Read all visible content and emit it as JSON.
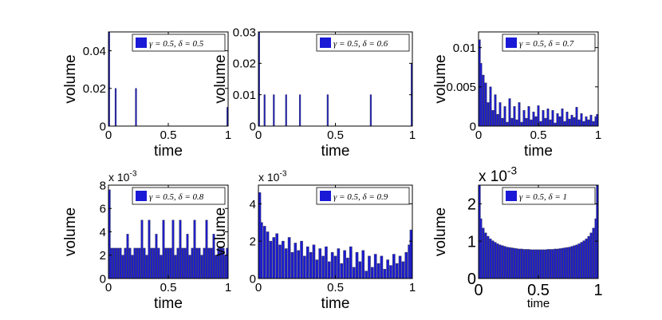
{
  "chart_data": [
    {
      "type": "bar",
      "xlabel": "time",
      "ylabel": "volume",
      "xlim": [
        0,
        1
      ],
      "ylim": [
        0,
        0.05
      ],
      "xticks": [
        "0",
        "0.5",
        "1"
      ],
      "yticks": [
        "0",
        "0.02",
        "0.04"
      ],
      "ytick_values": [
        0,
        0.02,
        0.04
      ],
      "exponent_label": "",
      "legend": "γ = 0.5,  δ = 0.5",
      "x": [
        0,
        0.06,
        0.23,
        1.0
      ],
      "values": [
        0.05,
        0.02,
        0.02,
        0.01
      ]
    },
    {
      "type": "bar",
      "xlabel": "time",
      "ylabel": "volume",
      "xlim": [
        0,
        1
      ],
      "ylim": [
        0,
        0.03
      ],
      "xticks": [
        "0",
        "0.5",
        "1"
      ],
      "yticks": [
        "0",
        "0.01",
        "0.02",
        "0.03"
      ],
      "ytick_values": [
        0,
        0.01,
        0.02,
        0.03
      ],
      "exponent_label": "",
      "legend": "γ = 0.5,  δ = 0.6",
      "x": [
        0,
        0.04,
        0.1,
        0.18,
        0.27,
        0.45,
        0.73,
        1.0
      ],
      "values": [
        0.03,
        0.01,
        0.01,
        0.01,
        0.01,
        0.01,
        0.01,
        0.02
      ]
    },
    {
      "type": "bar",
      "xlabel": "time",
      "ylabel": "volume",
      "xlim": [
        0,
        1
      ],
      "ylim": [
        0,
        0.012
      ],
      "xticks": [
        "0",
        "0.5",
        "1"
      ],
      "yticks": [
        "0",
        "0.005",
        "0.01"
      ],
      "ytick_values": [
        0,
        0.005,
        0.01
      ],
      "exponent_label": "",
      "legend": "γ = 0.5,  δ = 0.7",
      "x": [
        0,
        0.02,
        0.04,
        0.06,
        0.08,
        0.1,
        0.12,
        0.14,
        0.16,
        0.18,
        0.2,
        0.22,
        0.24,
        0.26,
        0.28,
        0.3,
        0.32,
        0.34,
        0.36,
        0.38,
        0.4,
        0.42,
        0.44,
        0.46,
        0.48,
        0.5,
        0.52,
        0.54,
        0.56,
        0.58,
        0.6,
        0.62,
        0.64,
        0.66,
        0.68,
        0.7,
        0.72,
        0.74,
        0.76,
        0.78,
        0.8,
        0.82,
        0.84,
        0.86,
        0.88,
        0.9,
        0.92,
        0.94,
        0.96,
        0.98,
        1.0
      ],
      "values": [
        0.011,
        0.008,
        0.0065,
        0.0055,
        0.003,
        0.005,
        0.002,
        0.004,
        0.0015,
        0.003,
        0.001,
        0.0025,
        0.0005,
        0.0035,
        0.001,
        0.0025,
        0.0008,
        0.003,
        0.0005,
        0.002,
        0.001,
        0.0025,
        0.0008,
        0.0018,
        0.0012,
        0.0026,
        0.0006,
        0.002,
        0.001,
        0.0022,
        0.0008,
        0.002,
        0.0004,
        0.0016,
        0.0012,
        0.0022,
        0.0006,
        0.0018,
        0.0009,
        0.0014,
        0.0011,
        0.0024,
        0.0008,
        0.0016,
        0.0006,
        0.0012,
        0.0008,
        0.0014,
        0.0006,
        0.0012,
        0.0015
      ]
    },
    {
      "type": "bar",
      "xlabel": "time",
      "ylabel": "volume",
      "xlim": [
        0,
        1
      ],
      "ylim": [
        0,
        0.008
      ],
      "xticks": [
        "0",
        "0.5",
        "1"
      ],
      "yticks": [
        "0",
        "2",
        "4",
        "6",
        "8"
      ],
      "ytick_values": [
        0,
        0.002,
        0.004,
        0.006,
        0.008
      ],
      "exponent_label": "x 10",
      "exponent_power": "-3",
      "legend": "γ = 0.5,  δ = 0.8",
      "x": [
        0,
        0.02,
        0.04,
        0.06,
        0.08,
        0.1,
        0.12,
        0.14,
        0.16,
        0.18,
        0.2,
        0.22,
        0.24,
        0.26,
        0.28,
        0.3,
        0.32,
        0.34,
        0.36,
        0.38,
        0.4,
        0.42,
        0.44,
        0.46,
        0.48,
        0.5,
        0.52,
        0.54,
        0.56,
        0.58,
        0.6,
        0.62,
        0.64,
        0.66,
        0.68,
        0.7,
        0.72,
        0.74,
        0.76,
        0.78,
        0.8,
        0.82,
        0.84,
        0.86,
        0.88,
        0.9,
        0.92,
        0.94,
        0.96,
        0.98,
        1.0
      ],
      "values": [
        0.0076,
        0.0026,
        0.0026,
        0.0026,
        0.0026,
        0.0026,
        0.002,
        0.0026,
        0.0038,
        0.0026,
        0.002,
        0.0026,
        0.0026,
        0.0026,
        0.005,
        0.0026,
        0.002,
        0.005,
        0.0026,
        0.0026,
        0.0038,
        0.0026,
        0.002,
        0.005,
        0.0026,
        0.0026,
        0.0026,
        0.005,
        0.002,
        0.0026,
        0.005,
        0.0026,
        0.0026,
        0.0038,
        0.002,
        0.0026,
        0.005,
        0.0026,
        0.0026,
        0.002,
        0.0026,
        0.005,
        0.0026,
        0.0026,
        0.0038,
        0.002,
        0.0026,
        0.0026,
        0.0026,
        0.002,
        0.0026
      ]
    },
    {
      "type": "bar",
      "xlabel": "time",
      "ylabel": "volume",
      "xlim": [
        0,
        1
      ],
      "ylim": [
        0,
        0.005
      ],
      "xticks": [
        "0",
        "0.5",
        "1"
      ],
      "yticks": [
        "0",
        "2",
        "4"
      ],
      "ytick_values": [
        0,
        0.002,
        0.004
      ],
      "exponent_label": "x 10",
      "exponent_power": "-3",
      "legend": "γ = 0.5,  δ = 0.9",
      "x": [
        0,
        0.02,
        0.04,
        0.06,
        0.08,
        0.1,
        0.12,
        0.14,
        0.16,
        0.18,
        0.2,
        0.22,
        0.24,
        0.26,
        0.28,
        0.3,
        0.32,
        0.34,
        0.36,
        0.38,
        0.4,
        0.42,
        0.44,
        0.46,
        0.48,
        0.5,
        0.52,
        0.54,
        0.56,
        0.58,
        0.6,
        0.62,
        0.64,
        0.66,
        0.68,
        0.7,
        0.72,
        0.74,
        0.76,
        0.78,
        0.8,
        0.82,
        0.84,
        0.86,
        0.88,
        0.9,
        0.92,
        0.94,
        0.96,
        0.98,
        1.0
      ],
      "values": [
        0.0046,
        0.003,
        0.0028,
        0.0025,
        0.002,
        0.0022,
        0.0024,
        0.0018,
        0.002,
        0.0016,
        0.0022,
        0.0014,
        0.0019,
        0.0015,
        0.002,
        0.0012,
        0.0017,
        0.0014,
        0.0018,
        0.001,
        0.0016,
        0.0012,
        0.0017,
        0.0009,
        0.0014,
        0.0012,
        0.0016,
        0.0008,
        0.0015,
        0.0011,
        0.0017,
        0.0006,
        0.0014,
        0.0009,
        0.0015,
        0.0004,
        0.0012,
        0.0006,
        0.0013,
        0.0008,
        0.0012,
        0.0005,
        0.001,
        0.0007,
        0.0013,
        0.0008,
        0.0012,
        0.0009,
        0.0014,
        0.0018,
        0.0026
      ]
    },
    {
      "type": "bar",
      "xlabel": "time",
      "ylabel": "volume",
      "xlim": [
        0,
        1
      ],
      "ylim": [
        0,
        0.0025
      ],
      "xticks": [
        "0",
        "0.5",
        "1"
      ],
      "yticks": [
        "0",
        "1",
        "2"
      ],
      "ytick_values": [
        0,
        0.001,
        0.002
      ],
      "exponent_label": "x 10",
      "exponent_power": "-3",
      "legend": "γ = 0.5,  δ = 1",
      "x": [
        0,
        0.02,
        0.04,
        0.06,
        0.08,
        0.1,
        0.12,
        0.14,
        0.16,
        0.18,
        0.2,
        0.22,
        0.24,
        0.26,
        0.28,
        0.3,
        0.32,
        0.34,
        0.36,
        0.38,
        0.4,
        0.42,
        0.44,
        0.46,
        0.48,
        0.5,
        0.52,
        0.54,
        0.56,
        0.58,
        0.6,
        0.62,
        0.64,
        0.66,
        0.68,
        0.7,
        0.72,
        0.74,
        0.76,
        0.78,
        0.8,
        0.82,
        0.84,
        0.86,
        0.88,
        0.9,
        0.92,
        0.94,
        0.96,
        0.98,
        1.0
      ],
      "values": [
        0.0025,
        0.0016,
        0.00135,
        0.00122,
        0.00113,
        0.00106,
        0.00101,
        0.00097,
        0.00093,
        0.0009,
        0.00088,
        0.00086,
        0.00084,
        0.00083,
        0.00082,
        0.00081,
        0.0008,
        0.00079,
        0.00079,
        0.00078,
        0.00078,
        0.00078,
        0.00077,
        0.00077,
        0.00077,
        0.00077,
        0.00077,
        0.00077,
        0.00077,
        0.00078,
        0.00078,
        0.00078,
        0.00079,
        0.00079,
        0.0008,
        0.00081,
        0.00082,
        0.00083,
        0.00084,
        0.00086,
        0.00088,
        0.0009,
        0.00093,
        0.00097,
        0.00101,
        0.00106,
        0.00113,
        0.00122,
        0.00135,
        0.0016,
        0.0025
      ]
    }
  ]
}
